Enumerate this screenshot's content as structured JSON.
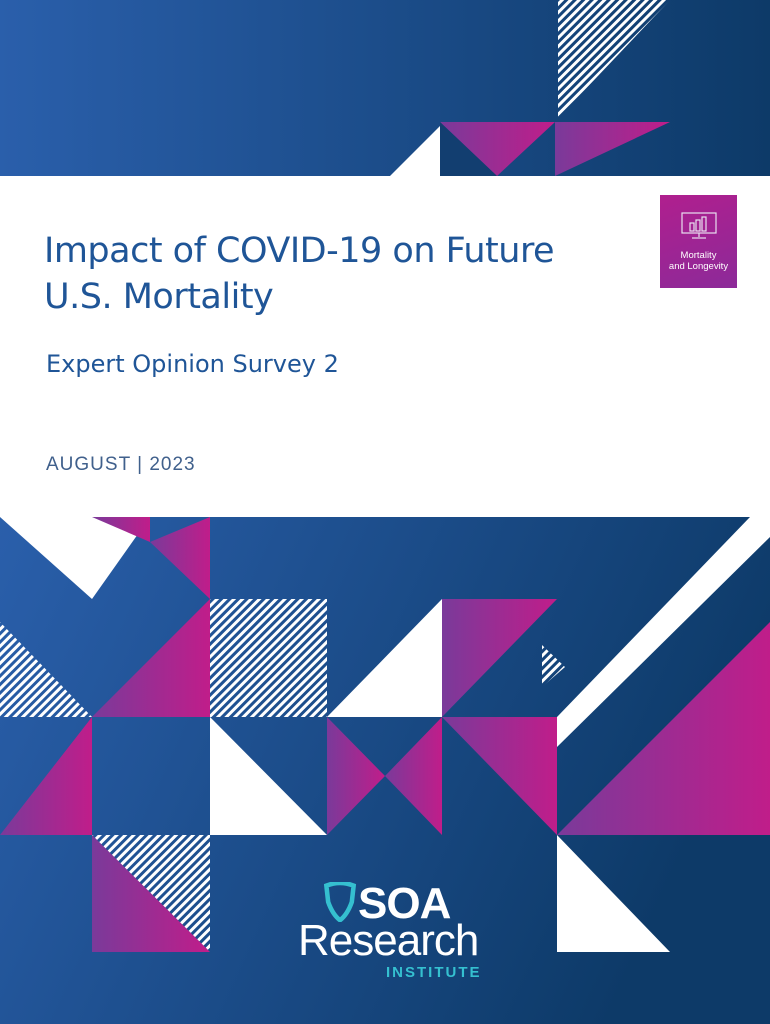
{
  "document": {
    "title_line1": "Impact of COVID-19 on Future",
    "title_line2": "U.S. Mortality",
    "subtitle": "Expert Opinion Survey 2",
    "date": "AUGUST | 2023"
  },
  "badge": {
    "label_line1": "Mortality",
    "label_line2": "and Longevity",
    "icon": "monitor-chart-icon"
  },
  "logo": {
    "line1": "SOA",
    "line2": "Research",
    "line3": "INSTITUTE",
    "icon": "shield-icon"
  },
  "colors": {
    "blue_light": "#2a5fab",
    "blue_dark": "#0d3a68",
    "magenta": "#b41f8c",
    "white": "#ffffff",
    "teal": "#35c0d0"
  }
}
